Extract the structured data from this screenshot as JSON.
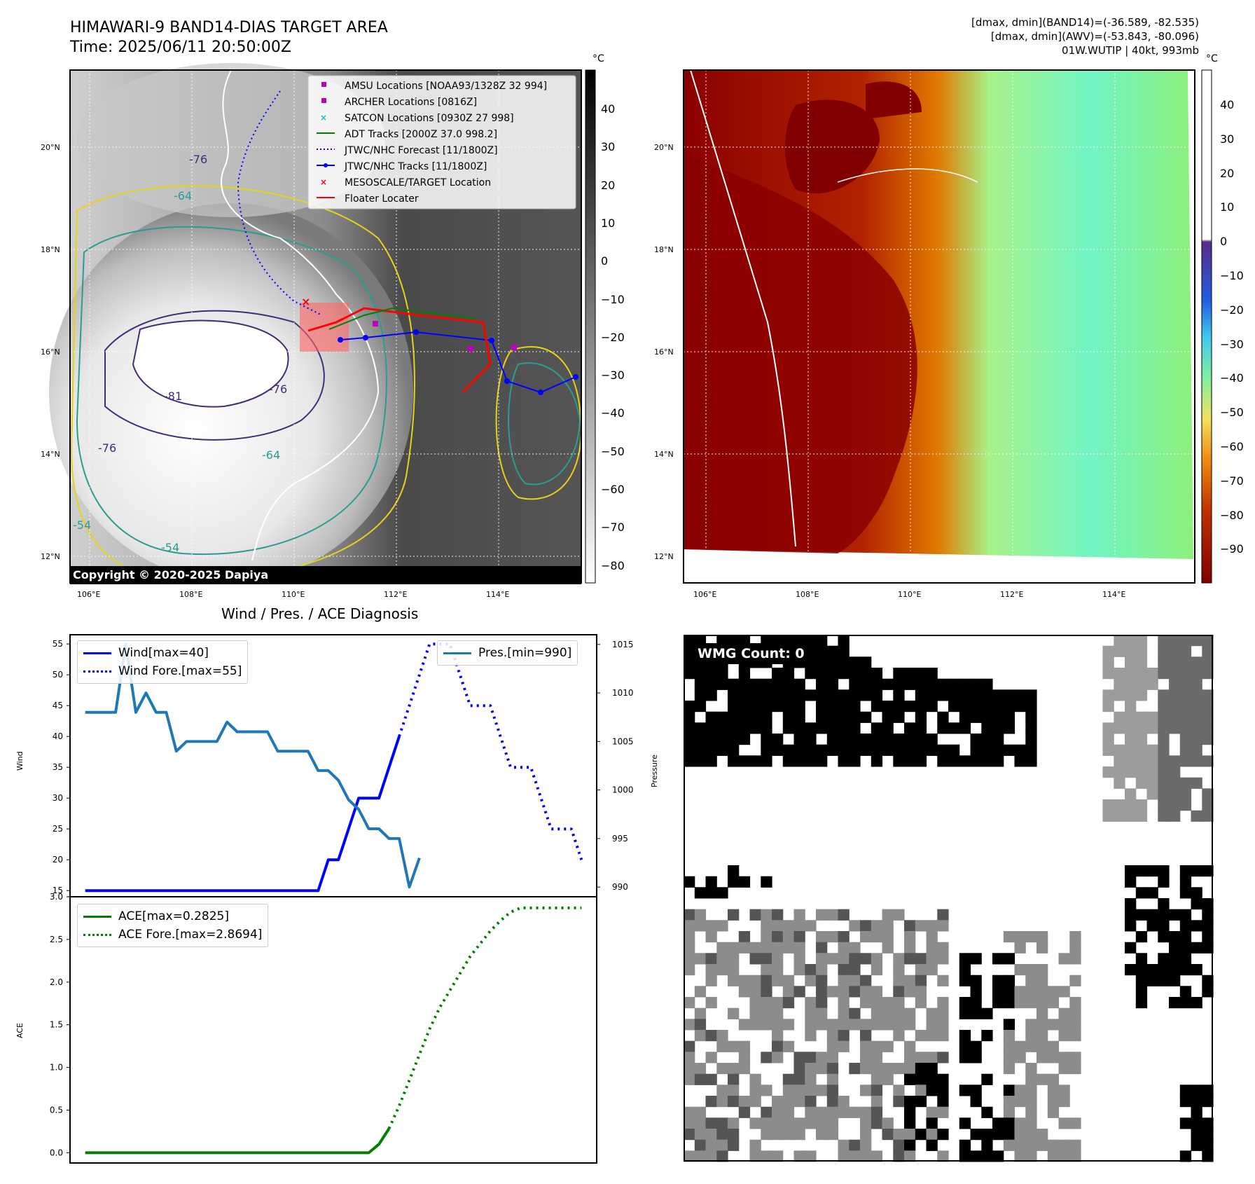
{
  "header": {
    "title_line1": "HIMAWARI-9 BAND14-DIAS TARGET AREA",
    "title_line2": "Time: 2025/06/11 20:50:00Z",
    "info_line1": "[dmax, dmin](BAND14)=(-36.589, -82.535)",
    "info_line2": "[dmax, dmin](AWV)=(-53.843, -80.096)",
    "info_line3": "01W.WUTIP | 40kt, 993mb"
  },
  "colors": {
    "wind": "#0000ff",
    "pressure": "#1f77b4",
    "ace": "#008000",
    "floater": "#ff0000",
    "satcon": "#17becf",
    "amsu": "#bf00bf"
  },
  "map_panel": {
    "lat_labels": [
      "20°N",
      "18°N",
      "16°N",
      "14°N",
      "12°N"
    ],
    "lon_labels": [
      "106°E",
      "108°E",
      "110°E",
      "112°E",
      "114°E"
    ],
    "copyright": "Copyright © 2020-2025 Dapiya",
    "colorbar_unit": "°C",
    "colorbar_ticks": [
      "40",
      "30",
      "20",
      "10",
      "0",
      "−10",
      "−20",
      "−30",
      "−40",
      "−50",
      "−60",
      "−70",
      "−80"
    ],
    "contour_labels": [
      "-76",
      "-64",
      "-81",
      "-76",
      "-54",
      "-54",
      "-64",
      "-76"
    ],
    "legend": [
      {
        "label": "AMSU Locations [NOAA93/1328Z 32 994]",
        "icon": "square-marker"
      },
      {
        "label": "ARCHER Locations [0816Z]",
        "icon": "square-marker"
      },
      {
        "label": "SATCON Locations [0930Z 27 998]",
        "icon": "x-marker"
      },
      {
        "label": "ADT Tracks [2000Z 37.0 998.2]",
        "icon": "green-line"
      },
      {
        "label": "JTWC/NHC Forecast [11/1800Z]",
        "icon": "blue-dotted-line"
      },
      {
        "label": "JTWC/NHC Tracks [11/1800Z]",
        "icon": "blue-line-dot"
      },
      {
        "label": "MESOSCALE/TARGET Location",
        "icon": "red-x"
      },
      {
        "label": "Floater Locater",
        "icon": "red-line"
      }
    ]
  },
  "awv_panel": {
    "lat_labels": [
      "20°N",
      "18°N",
      "16°N",
      "14°N",
      "12°N"
    ],
    "lon_labels": [
      "106°E",
      "108°E",
      "110°E",
      "112°E",
      "114°E"
    ],
    "colorbar_unit": "°C",
    "colorbar_ticks": [
      "40",
      "30",
      "20",
      "10",
      "0",
      "−10",
      "−20",
      "−30",
      "−40",
      "−50",
      "−60",
      "−70",
      "−80",
      "−90"
    ]
  },
  "wmg_panel": {
    "badge": "WMG Count: 0"
  },
  "chart_data": [
    {
      "type": "line",
      "title": "Wind / Pres. / ACE Diagnosis",
      "ylabel": "Wind",
      "ylabel_right": "Pressure",
      "ylim": [
        14,
        56.5
      ],
      "ylim_right": [
        989,
        1016
      ],
      "yticks": [
        15,
        20,
        25,
        30,
        35,
        40,
        45,
        50,
        55
      ],
      "yticks_right": [
        990,
        995,
        1000,
        1005,
        1010,
        1015
      ],
      "x": [
        0,
        1,
        2,
        3,
        4,
        5,
        6,
        7,
        8,
        9,
        10,
        11,
        12,
        13,
        14,
        15,
        16,
        17,
        18,
        19,
        20,
        21,
        22,
        23,
        24,
        25,
        26,
        27,
        28,
        29,
        30,
        31,
        32,
        33,
        34,
        35,
        36,
        37,
        38,
        39,
        40,
        41,
        42,
        43,
        44,
        45,
        46,
        47,
        48,
        49
      ],
      "series": [
        {
          "name": "Wind[max=40]",
          "style": "solid",
          "values": [
            15,
            15,
            15,
            15,
            15,
            15,
            15,
            15,
            15,
            15,
            15,
            15,
            15,
            15,
            15,
            15,
            15,
            15,
            15,
            15,
            15,
            15,
            15,
            15,
            20,
            20,
            25,
            30,
            30,
            30,
            35,
            40,
            null,
            null,
            null,
            null,
            null,
            null,
            null,
            null,
            null,
            null,
            null,
            null,
            null,
            null,
            null,
            null,
            null,
            null
          ]
        },
        {
          "name": "Wind Fore.[max=55]",
          "style": "dotted",
          "values": [
            null,
            null,
            null,
            null,
            null,
            null,
            null,
            null,
            null,
            null,
            null,
            null,
            null,
            null,
            null,
            null,
            null,
            null,
            null,
            null,
            null,
            null,
            null,
            null,
            null,
            null,
            null,
            null,
            null,
            null,
            null,
            40,
            45,
            50,
            55,
            55,
            55,
            50,
            45,
            45,
            45,
            40,
            35,
            35,
            35,
            30,
            25,
            25,
            25,
            20
          ]
        },
        {
          "name": "Pres.[min=990]",
          "style": "solid",
          "axis": "right",
          "values": [
            1008,
            1008,
            1008,
            1008,
            1015,
            1008,
            1010,
            1008,
            1008,
            1004,
            1005,
            1005,
            1005,
            1005,
            1007,
            1006,
            1006,
            1006,
            1006,
            1004,
            1004,
            1004,
            1004,
            1002,
            1002,
            1001,
            999,
            998,
            996,
            996,
            995,
            995,
            990,
            993,
            null,
            null,
            null,
            null,
            null,
            null,
            null,
            null,
            null,
            null,
            null,
            null,
            null,
            null,
            null,
            null
          ]
        }
      ]
    },
    {
      "type": "line",
      "ylabel": "ACE",
      "ylim": [
        -0.12,
        3.0
      ],
      "yticks": [
        0.0,
        0.5,
        1.0,
        1.5,
        2.0,
        2.5,
        3.0
      ],
      "x": [
        0,
        1,
        2,
        3,
        4,
        5,
        6,
        7,
        8,
        9,
        10,
        11,
        12,
        13,
        14,
        15,
        16,
        17,
        18,
        19,
        20,
        21,
        22,
        23,
        24,
        25,
        26,
        27,
        28,
        29,
        30,
        31,
        32,
        33,
        34,
        35,
        36,
        37,
        38,
        39,
        40,
        41,
        42,
        43,
        44,
        45,
        46,
        47,
        48,
        49
      ],
      "series": [
        {
          "name": "ACE[max=0.2825]",
          "style": "solid",
          "values": [
            0,
            0,
            0,
            0,
            0,
            0,
            0,
            0,
            0,
            0,
            0,
            0,
            0,
            0,
            0,
            0,
            0,
            0,
            0,
            0,
            0,
            0,
            0,
            0,
            0,
            0,
            0,
            0,
            0,
            0.1,
            0.2825,
            null,
            null,
            null,
            null,
            null,
            null,
            null,
            null,
            null,
            null,
            null,
            null,
            null,
            null,
            null,
            null,
            null,
            null,
            null
          ]
        },
        {
          "name": "ACE Fore.[max=2.8694]",
          "style": "dotted",
          "values": [
            null,
            null,
            null,
            null,
            null,
            null,
            null,
            null,
            null,
            null,
            null,
            null,
            null,
            null,
            null,
            null,
            null,
            null,
            null,
            null,
            null,
            null,
            null,
            null,
            null,
            null,
            null,
            null,
            null,
            null,
            0.2825,
            0.55,
            0.85,
            1.15,
            1.45,
            1.7,
            1.9,
            2.1,
            2.3,
            2.45,
            2.6,
            2.72,
            2.82,
            2.8694,
            2.8694,
            2.8694,
            2.8694,
            2.8694,
            2.8694,
            2.8694
          ]
        }
      ]
    }
  ]
}
